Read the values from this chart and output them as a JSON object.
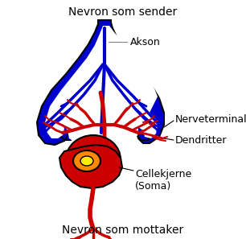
{
  "title_top": "Nevron som sender",
  "title_bottom": "Nevron som mottaker",
  "label_akson": "Akson",
  "label_nerveterminal": "Nerveterminal",
  "label_dendritter": "Dendritter",
  "label_cellekjerne": "Cellekjerne\n(Soma)",
  "blue_color": "#0000cc",
  "red_color": "#cc0000",
  "orange_color": "#ff8800",
  "yellow_color": "#ffee00",
  "black_color": "#000000",
  "white_color": "#ffffff",
  "bg_color": "#ffffff",
  "fig_width": 3.06,
  "fig_height": 2.97,
  "dpi": 100
}
